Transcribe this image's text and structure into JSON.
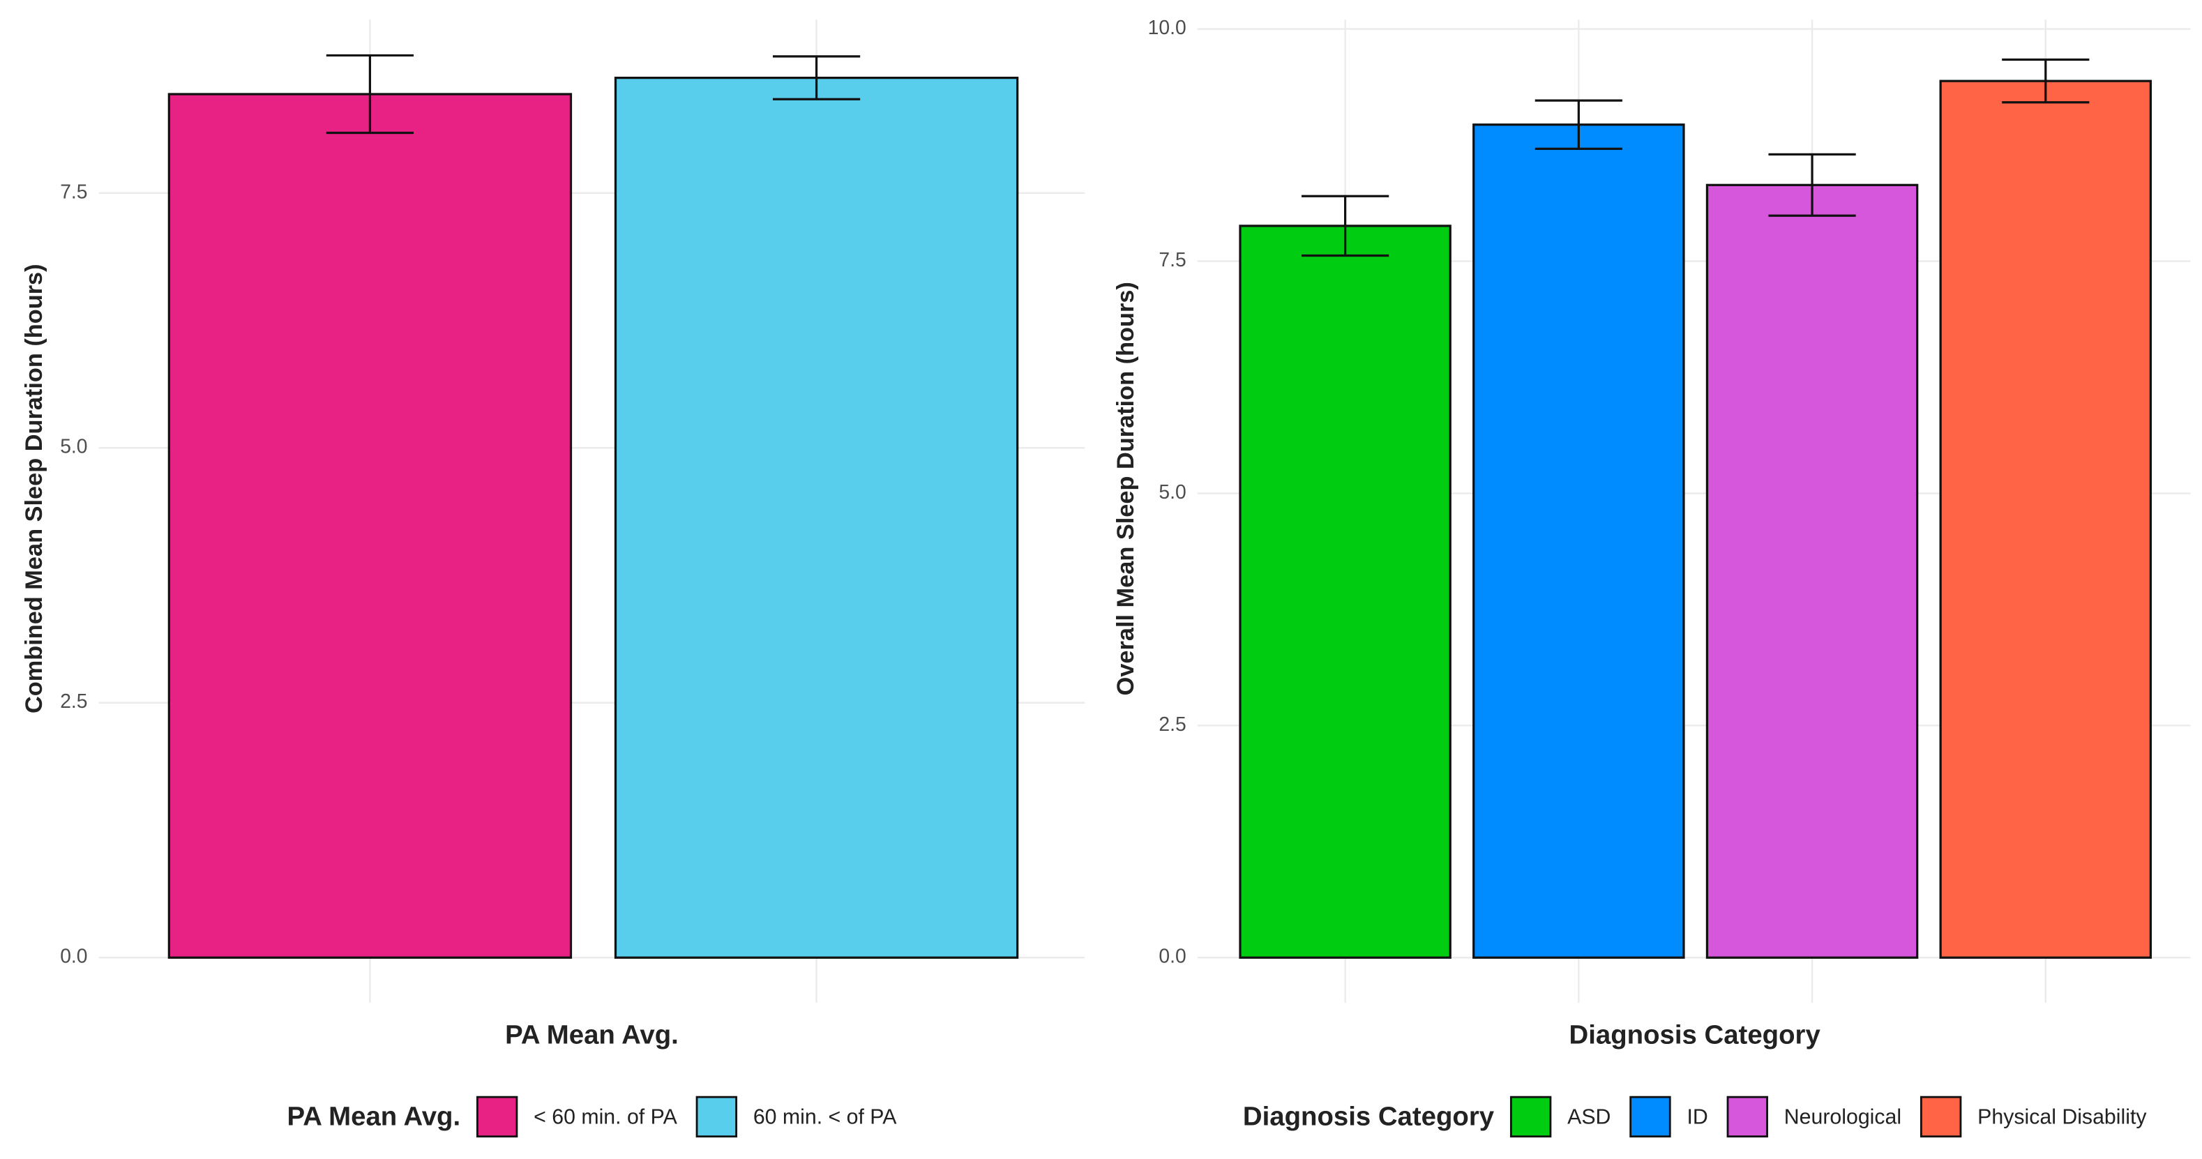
{
  "chart_data": [
    {
      "type": "bar",
      "y_label": "Combined Mean Sleep Duration (hours)",
      "x_label": "PA Mean Avg.",
      "legend_title": "PA Mean Avg.",
      "categories": [
        "< 60 min. of PA",
        "60 min. < of PA"
      ],
      "values": [
        8.47,
        8.63
      ],
      "errors": [
        0.38,
        0.21
      ],
      "colors": [
        "#e82185",
        "#58ceec"
      ],
      "ylim": [
        0,
        9.2
      ],
      "yticks": [
        {
          "value": 0,
          "label": "0.0"
        },
        2.5,
        {
          "value": 5,
          "label": "5.0"
        },
        7.5
      ],
      "grid": true,
      "legend": "bottom"
    },
    {
      "type": "bar",
      "y_label": "Overall Mean Sleep Duration (hours)",
      "x_label": "Diagnosis Category",
      "legend_title": "Diagnosis Category",
      "categories": [
        "ASD",
        "ID",
        "Neurological",
        "Physical Disability"
      ],
      "values": [
        7.88,
        8.97,
        8.32,
        9.44
      ],
      "errors": [
        0.32,
        0.26,
        0.33,
        0.23
      ],
      "colors": [
        "#00cc11",
        "#008cff",
        "#d656dc",
        "#ff6446"
      ],
      "ylim": [
        0,
        10.1
      ],
      "yticks": [
        {
          "value": 0,
          "label": "0.0"
        },
        2.5,
        {
          "value": 5,
          "label": "5.0"
        },
        7.5,
        {
          "value": 10,
          "label": "10.0"
        }
      ],
      "grid": true,
      "legend": "bottom"
    }
  ]
}
